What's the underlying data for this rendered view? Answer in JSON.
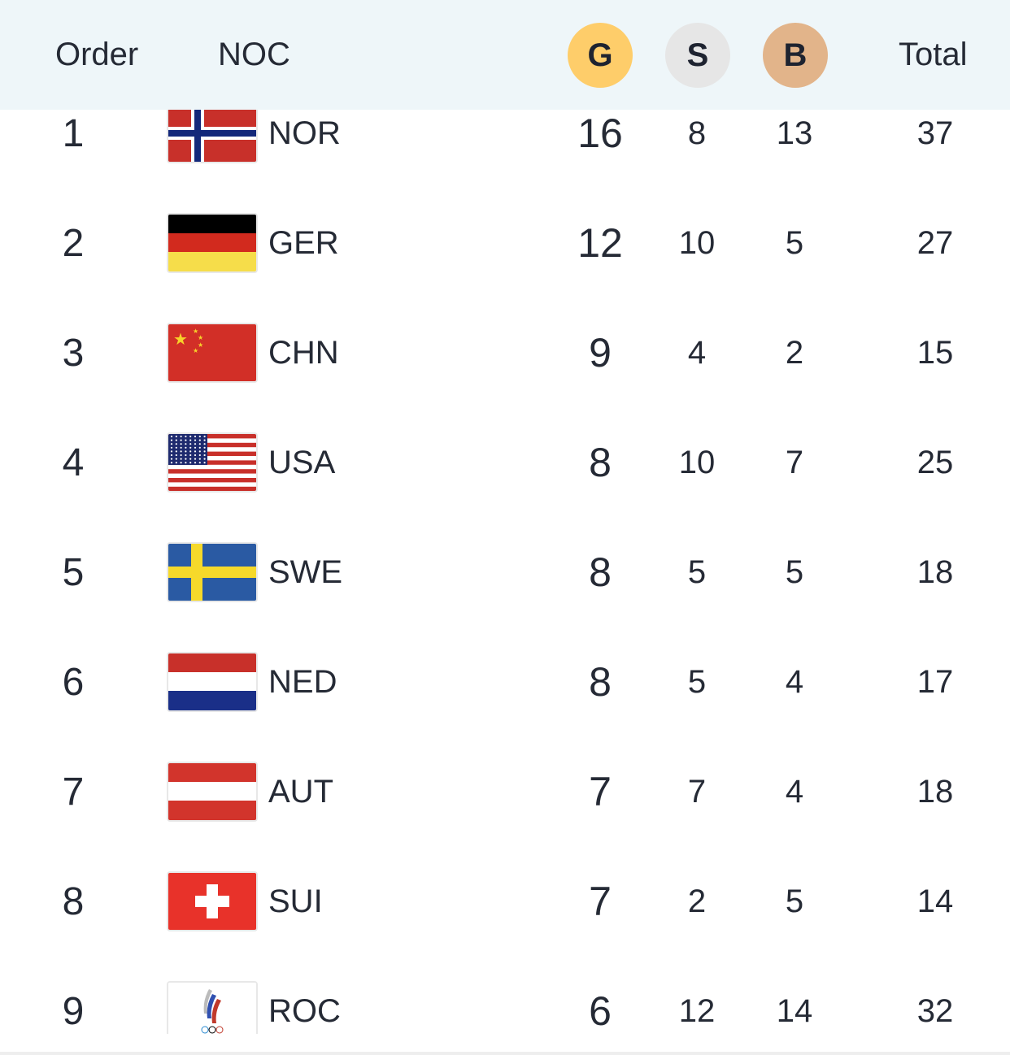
{
  "header": {
    "order": "Order",
    "noc": "NOC",
    "gold": "G",
    "silver": "S",
    "bronze": "B",
    "total": "Total"
  },
  "colors": {
    "gold": "#fecd6a",
    "silver": "#e6e6e6",
    "bronze": "#e2b48a",
    "header_bg": "#eef6f9"
  },
  "rows": [
    {
      "order": "1",
      "noc": "NOR",
      "flag": "norway-flag",
      "gold": "16",
      "silver": "8",
      "bronze": "13",
      "total": "37"
    },
    {
      "order": "2",
      "noc": "GER",
      "flag": "germany-flag",
      "gold": "12",
      "silver": "10",
      "bronze": "5",
      "total": "27"
    },
    {
      "order": "3",
      "noc": "CHN",
      "flag": "china-flag",
      "gold": "9",
      "silver": "4",
      "bronze": "2",
      "total": "15"
    },
    {
      "order": "4",
      "noc": "USA",
      "flag": "usa-flag",
      "gold": "8",
      "silver": "10",
      "bronze": "7",
      "total": "25"
    },
    {
      "order": "5",
      "noc": "SWE",
      "flag": "sweden-flag",
      "gold": "8",
      "silver": "5",
      "bronze": "5",
      "total": "18"
    },
    {
      "order": "6",
      "noc": "NED",
      "flag": "netherlands-flag",
      "gold": "8",
      "silver": "5",
      "bronze": "4",
      "total": "17"
    },
    {
      "order": "7",
      "noc": "AUT",
      "flag": "austria-flag",
      "gold": "7",
      "silver": "7",
      "bronze": "4",
      "total": "18"
    },
    {
      "order": "8",
      "noc": "SUI",
      "flag": "switzerland-flag",
      "gold": "7",
      "silver": "2",
      "bronze": "5",
      "total": "14"
    },
    {
      "order": "9",
      "noc": "ROC",
      "flag": "roc-emblem",
      "gold": "6",
      "silver": "12",
      "bronze": "14",
      "total": "32"
    }
  ]
}
